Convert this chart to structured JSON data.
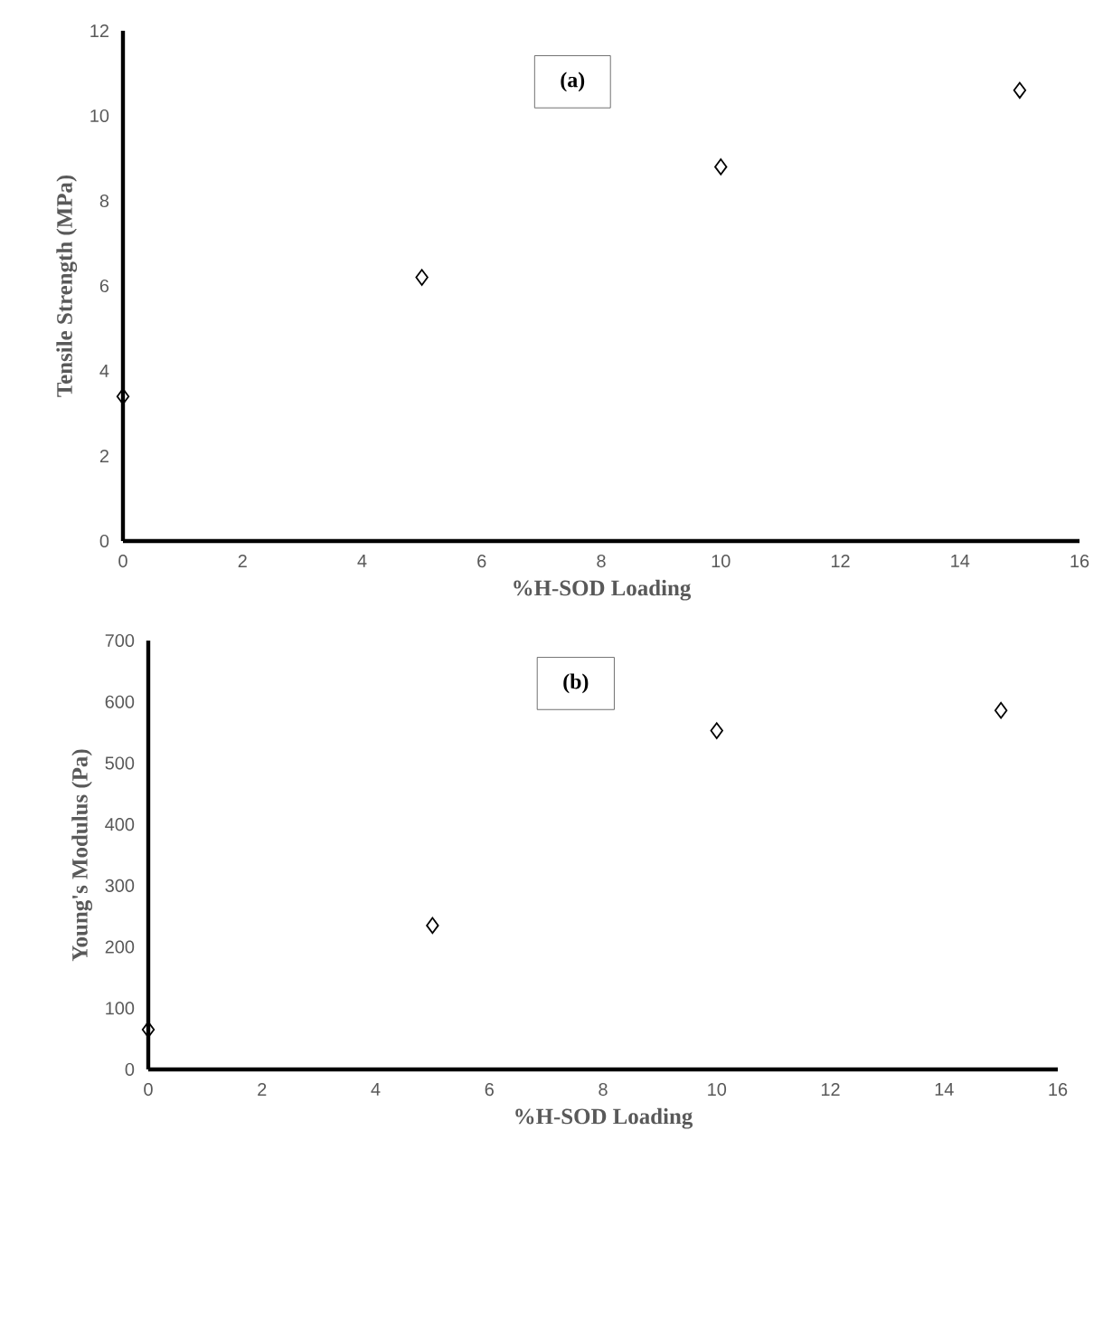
{
  "chart_data": [
    {
      "type": "scatter",
      "x": [
        0,
        5,
        10,
        15
      ],
      "values": [
        3.4,
        6.2,
        8.8,
        10.6
      ],
      "color": "#000000",
      "marker": "diamond",
      "xlabel": "%H-SOD Loading",
      "ylabel": "Tensile Strength (MPa)",
      "xlim": [
        0,
        16
      ],
      "xticks": [
        0,
        2,
        4,
        6,
        8,
        10,
        12,
        14,
        16
      ],
      "ylim": [
        0,
        12
      ],
      "yticks": [
        0,
        2,
        4,
        6,
        8,
        10,
        12
      ],
      "annotations": [
        "(a)"
      ]
    },
    {
      "type": "scatter",
      "x": [
        0,
        5,
        10,
        15
      ],
      "values": [
        65,
        235,
        553,
        586
      ],
      "color": "#000000",
      "marker": "diamond",
      "xlabel": "%H-SOD Loading",
      "ylabel": "Young's Modulus (Pa)",
      "xlim": [
        0,
        16
      ],
      "xticks": [
        0,
        2,
        4,
        6,
        8,
        10,
        12,
        14,
        16
      ],
      "ylim": [
        0,
        700
      ],
      "yticks": [
        0,
        100,
        200,
        300,
        400,
        500,
        600,
        700
      ],
      "annotations": [
        "(b)"
      ]
    }
  ]
}
